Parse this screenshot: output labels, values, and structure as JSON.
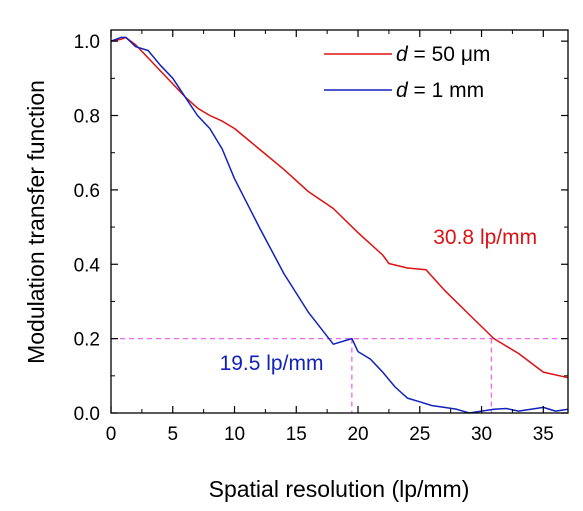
{
  "chart_data": {
    "type": "line",
    "xlabel": "Spatial resolution (lp/mm)",
    "ylabel": "Modulation transfer function",
    "xlim": [
      0,
      37
    ],
    "ylim": [
      0,
      1.03
    ],
    "x_ticks": [
      "0",
      "5",
      "10",
      "15",
      "20",
      "25",
      "30",
      "35"
    ],
    "y_ticks": [
      "0.0",
      "0.2",
      "0.4",
      "0.6",
      "0.8",
      "1.0"
    ],
    "x_tick_values": [
      0,
      5,
      10,
      15,
      20,
      25,
      30,
      35
    ],
    "y_tick_values": [
      0,
      0.2,
      0.4,
      0.6,
      0.8,
      1.0
    ],
    "grid": false,
    "legend_position": "top-right",
    "series": [
      {
        "name_var": "d",
        "name_rest": " = 50 μm",
        "color": "#dd1111",
        "x": [
          0,
          0.8,
          1.2,
          2,
          3,
          4,
          5,
          6,
          7,
          8,
          9,
          10,
          12,
          14,
          16,
          18,
          20,
          22,
          22.5,
          24,
          25.5,
          27,
          29,
          31,
          33,
          35,
          37
        ],
        "y": [
          1.0,
          1.005,
          1.01,
          0.99,
          0.955,
          0.92,
          0.885,
          0.85,
          0.82,
          0.8,
          0.785,
          0.765,
          0.71,
          0.655,
          0.595,
          0.55,
          0.485,
          0.425,
          0.402,
          0.39,
          0.385,
          0.33,
          0.265,
          0.2,
          0.16,
          0.11,
          0.095
        ]
      },
      {
        "name_var": "d",
        "name_rest": " = 1 mm",
        "color": "#1122bb",
        "x": [
          0,
          0.8,
          1.2,
          2,
          3,
          4,
          5,
          6,
          7,
          8,
          9,
          10,
          12,
          14,
          16,
          18,
          19.5,
          20,
          21,
          22,
          23,
          24,
          25,
          26,
          27,
          28,
          29,
          30,
          31,
          32,
          33,
          34,
          35,
          36,
          37
        ],
        "y": [
          1.0,
          1.01,
          1.01,
          0.985,
          0.975,
          0.935,
          0.9,
          0.85,
          0.8,
          0.765,
          0.71,
          0.63,
          0.5,
          0.375,
          0.27,
          0.185,
          0.2,
          0.165,
          0.145,
          0.11,
          0.07,
          0.04,
          0.03,
          0.02,
          0.015,
          0.01,
          0.0,
          0.005,
          0.01,
          0.012,
          0.005,
          0.01,
          0.015,
          0.005,
          0.01
        ]
      }
    ],
    "reference_lines": [
      {
        "orientation": "horizontal",
        "value": 0.2,
        "color": "#ee66ee"
      },
      {
        "orientation": "vertical",
        "value": 19.5,
        "color": "#ee66ee"
      },
      {
        "orientation": "vertical",
        "value": 30.8,
        "color": "#ee66ee"
      }
    ],
    "annotations": [
      {
        "text": "30.8 lp/mm",
        "x": 34.5,
        "y": 0.455,
        "anchor": "end",
        "color": "#dd1111"
      },
      {
        "text": "19.5 lp/mm",
        "x": 17.2,
        "y": 0.115,
        "anchor": "end",
        "color": "#1122bb"
      }
    ]
  }
}
